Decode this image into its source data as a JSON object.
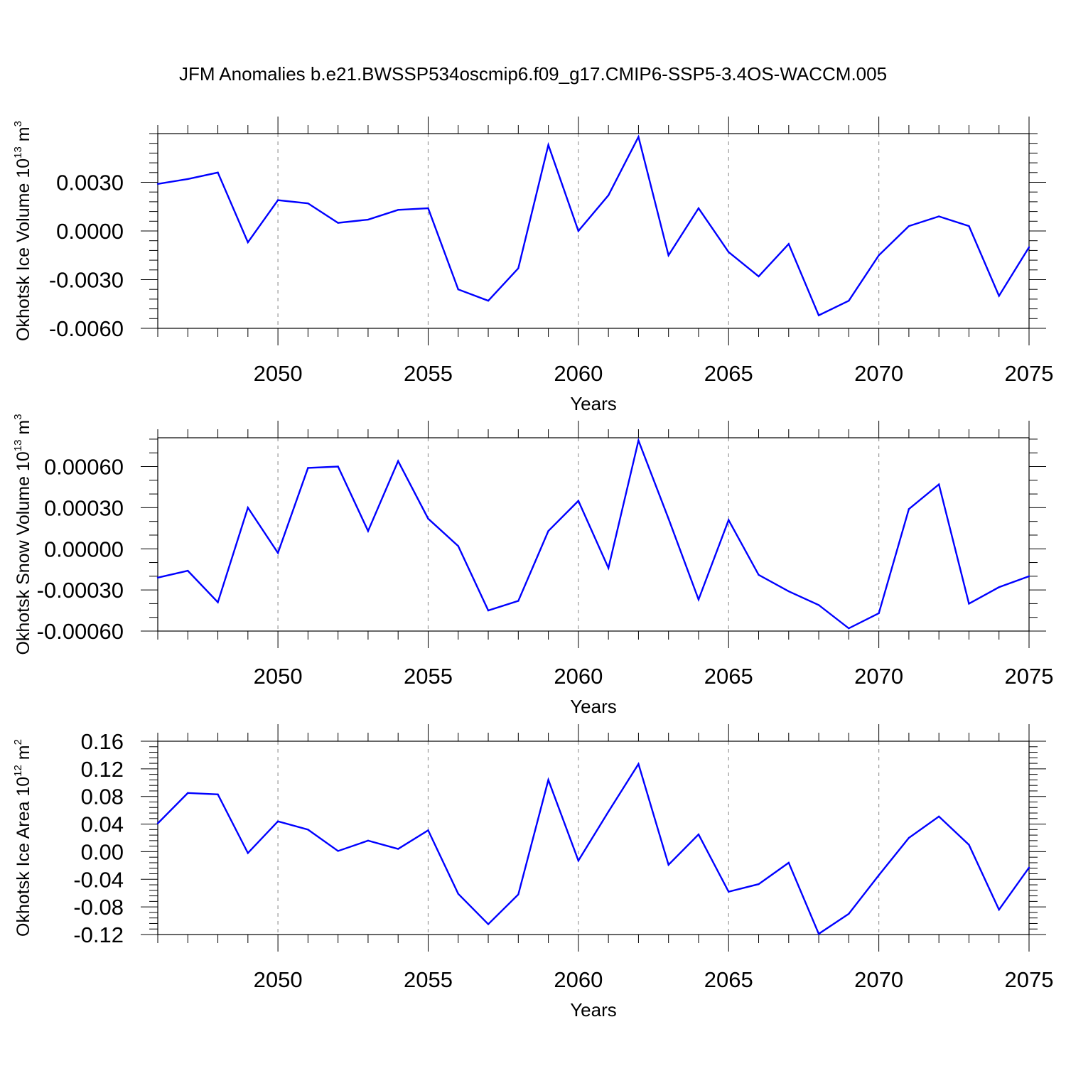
{
  "title": "JFM Anomalies b.e21.BWSSP534oscmip6.f09_g17.CMIP6-SSP5-3.4OS-WACCM.005",
  "colors": {
    "line": "#0000ff",
    "grid": "#999999",
    "axis": "#000000"
  },
  "chart_data": [
    {
      "type": "line",
      "title": "JFM Anomalies b.e21.BWSSP534oscmip6.f09_g17.CMIP6-SSP5-3.4OS-WACCM.005",
      "xlabel": "Years",
      "ylabel_main": "Okhotsk Ice Volume 10",
      "ylabel_exp": "13",
      "ylabel_unit": " m",
      "ylabel_unit_exp": "3",
      "xlim": [
        2046,
        2075
      ],
      "ylim": [
        -0.006,
        0.006
      ],
      "x_ticks": [
        2050,
        2055,
        2060,
        2065,
        2070,
        2075
      ],
      "x_tick_labels": [
        "2050",
        "2055",
        "2060",
        "2065",
        "2070",
        "2075"
      ],
      "y_ticks": [
        -0.006,
        -0.003,
        0.0,
        0.003
      ],
      "y_tick_labels": [
        "-0.0060",
        "-0.0030",
        "0.0000",
        "0.0030"
      ],
      "y_minor_step": 0.0006,
      "x_minor_step": 1,
      "grid": "x-dashed",
      "x": [
        2046,
        2047,
        2048,
        2049,
        2050,
        2051,
        2052,
        2053,
        2054,
        2055,
        2056,
        2057,
        2058,
        2059,
        2060,
        2061,
        2062,
        2063,
        2064,
        2065,
        2066,
        2067,
        2068,
        2069,
        2070,
        2071,
        2072,
        2073,
        2074,
        2075
      ],
      "series": [
        {
          "name": "Okhotsk Ice Volume",
          "values": [
            0.0029,
            0.0032,
            0.0036,
            -0.0007,
            0.0019,
            0.0017,
            0.0005,
            0.0007,
            0.0013,
            0.0014,
            -0.0036,
            -0.0043,
            -0.0023,
            0.0053,
            0.0,
            0.0022,
            0.0058,
            -0.0015,
            0.0014,
            -0.0013,
            -0.0028,
            -0.0008,
            -0.0052,
            -0.0043,
            -0.0015,
            0.0003,
            0.0009,
            0.0003,
            -0.004,
            -0.001
          ]
        }
      ]
    },
    {
      "type": "line",
      "xlabel": "Years",
      "ylabel_main": "Okhotsk Snow Volume 10",
      "ylabel_exp": "13",
      "ylabel_unit": " m",
      "ylabel_unit_exp": "3",
      "xlim": [
        2046,
        2075
      ],
      "ylim": [
        -0.0006,
        0.00081
      ],
      "x_ticks": [
        2050,
        2055,
        2060,
        2065,
        2070,
        2075
      ],
      "x_tick_labels": [
        "2050",
        "2055",
        "2060",
        "2065",
        "2070",
        "2075"
      ],
      "y_ticks": [
        -0.0006,
        -0.0003,
        0.0,
        0.0003,
        0.0006
      ],
      "y_tick_labels": [
        "-0.00060",
        "-0.00030",
        "0.00000",
        "0.00030",
        "0.00060"
      ],
      "y_minor_step": 0.0001,
      "x_minor_step": 1,
      "grid": "x-dashed",
      "x": [
        2046,
        2047,
        2048,
        2049,
        2050,
        2051,
        2052,
        2053,
        2054,
        2055,
        2056,
        2057,
        2058,
        2059,
        2060,
        2061,
        2062,
        2063,
        2064,
        2065,
        2066,
        2067,
        2068,
        2069,
        2070,
        2071,
        2072,
        2073,
        2074,
        2075
      ],
      "series": [
        {
          "name": "Okhotsk Snow Volume",
          "values": [
            -0.00021,
            -0.00016,
            -0.00039,
            0.0003,
            -3e-05,
            0.00059,
            0.0006,
            0.00013,
            0.00064,
            0.00022,
            2e-05,
            -0.00045,
            -0.00038,
            0.00013,
            0.00035,
            -0.00014,
            0.00079,
            0.00022,
            -0.00037,
            0.00021,
            -0.00019,
            -0.00031,
            -0.00041,
            -0.00058,
            -0.00047,
            0.00029,
            0.00047,
            -0.0004,
            -0.00028,
            -0.0002
          ]
        }
      ]
    },
    {
      "type": "line",
      "xlabel": "Years",
      "ylabel_main": "Okhotsk Ice Area 10",
      "ylabel_exp": "12",
      "ylabel_unit": " m",
      "ylabel_unit_exp": "2",
      "xlim": [
        2046,
        2075
      ],
      "ylim": [
        -0.12,
        0.16
      ],
      "x_ticks": [
        2050,
        2055,
        2060,
        2065,
        2070,
        2075
      ],
      "x_tick_labels": [
        "2050",
        "2055",
        "2060",
        "2065",
        "2070",
        "2075"
      ],
      "y_ticks": [
        -0.12,
        -0.08,
        -0.04,
        0.0,
        0.04,
        0.08,
        0.12,
        0.16
      ],
      "y_tick_labels": [
        "-0.12",
        "-0.08",
        "-0.04",
        "0.00",
        "0.04",
        "0.08",
        "0.12",
        "0.16"
      ],
      "y_minor_step": 0.008,
      "x_minor_step": 1,
      "grid": "x-dashed",
      "x": [
        2046,
        2047,
        2048,
        2049,
        2050,
        2051,
        2052,
        2053,
        2054,
        2055,
        2056,
        2057,
        2058,
        2059,
        2060,
        2061,
        2062,
        2063,
        2064,
        2065,
        2066,
        2067,
        2068,
        2069,
        2070,
        2071,
        2072,
        2073,
        2074,
        2075
      ],
      "series": [
        {
          "name": "Okhotsk Ice Area",
          "values": [
            0.041,
            0.085,
            0.083,
            -0.002,
            0.044,
            0.032,
            0.001,
            0.016,
            0.004,
            0.031,
            -0.061,
            -0.105,
            -0.062,
            0.104,
            -0.013,
            0.058,
            0.127,
            -0.019,
            0.025,
            -0.058,
            -0.047,
            -0.016,
            -0.119,
            -0.09,
            -0.034,
            0.02,
            0.051,
            0.01,
            -0.084,
            -0.023
          ]
        }
      ]
    }
  ]
}
